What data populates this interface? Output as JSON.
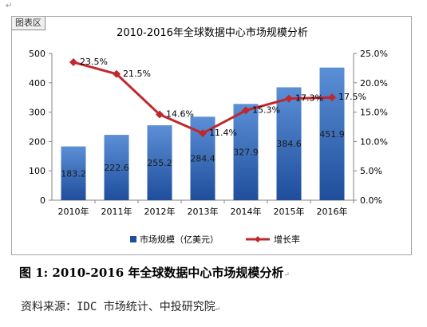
{
  "doc_marks": {
    "top": "↵",
    "paragraph": "↵"
  },
  "chart_area_label": "图表区",
  "caption": "图 1:  2010-2016 年全球数据中心市场规模分析",
  "source": "资料来源：IDC 市场统计、中投研究院",
  "colors": {
    "bar_top": "#5b8fd6",
    "bar_bottom": "#1f4e9c",
    "line": "#c0282d",
    "axis": "#868686",
    "grid": "#d9d9d9"
  },
  "chart_data": {
    "type": "bar",
    "title": "2010-2016年全球数据中心市场规模分析",
    "categories": [
      "2010年",
      "2011年",
      "2012年",
      "2013年",
      "2014年",
      "2015年",
      "2016年"
    ],
    "series": [
      {
        "name": "市场规模（亿美元）",
        "type": "bar",
        "axis": "left",
        "values": [
          183.2,
          222.6,
          255.2,
          284.4,
          327.9,
          384.6,
          451.9
        ],
        "labels": [
          "183.2",
          "222.6",
          "255.2",
          "284.4",
          "327.9",
          "384.6",
          "451.9"
        ]
      },
      {
        "name": "增长率",
        "type": "line",
        "axis": "right",
        "values": [
          23.5,
          21.5,
          14.6,
          11.4,
          15.3,
          17.3,
          17.5
        ],
        "labels": [
          "23.5%",
          "21.5%",
          "14.6%",
          "11.4%",
          "15.3%",
          "17.3%",
          "17.5%"
        ]
      }
    ],
    "y_left": {
      "min": 0,
      "max": 500,
      "ticks": [
        "0",
        "100",
        "200",
        "300",
        "400",
        "500"
      ]
    },
    "y_right": {
      "min": 0,
      "max": 25,
      "ticks": [
        "0.0%",
        "5.0%",
        "10.0%",
        "15.0%",
        "20.0%",
        "25.0%"
      ]
    },
    "grid": false,
    "legend_position": "bottom"
  }
}
